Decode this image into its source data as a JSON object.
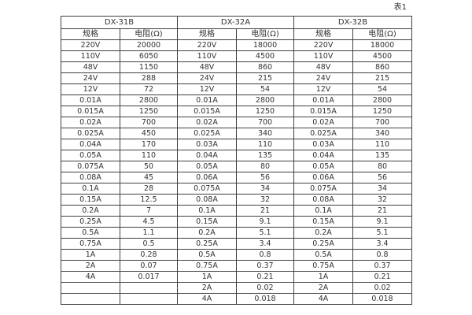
{
  "page": {
    "caption": "表1"
  },
  "colors": {
    "border": "#404040",
    "text": "#333333",
    "background": "#ffffff"
  },
  "table": {
    "groups": [
      {
        "name": "DX-31B",
        "col_headers": [
          "规格",
          "电阻(Ω)"
        ],
        "rows": [
          [
            "220V",
            "20000"
          ],
          [
            "110V",
            "6050"
          ],
          [
            "48V",
            "1150"
          ],
          [
            "24V",
            "288"
          ],
          [
            "12V",
            "72"
          ],
          [
            "0.01A",
            "2800"
          ],
          [
            "0.015A",
            "1250"
          ],
          [
            "0.02A",
            "700"
          ],
          [
            "0.025A",
            "450"
          ],
          [
            "0.04A",
            "170"
          ],
          [
            "0.05A",
            "110"
          ],
          [
            "0.075A",
            "50"
          ],
          [
            "0.08A",
            "45"
          ],
          [
            "0.1A",
            "28"
          ],
          [
            "0.15A",
            "12.5"
          ],
          [
            "0.2A",
            "7"
          ],
          [
            "0.25A",
            "4.5"
          ],
          [
            "0.5A",
            "1.1"
          ],
          [
            "0.75A",
            "0.5"
          ],
          [
            "1A",
            "0.28"
          ],
          [
            "2A",
            "0.07"
          ],
          [
            "4A",
            "0.017"
          ],
          [
            "",
            ""
          ],
          [
            "",
            ""
          ]
        ]
      },
      {
        "name": "DX-32A",
        "col_headers": [
          "规格",
          "电阻(Ω)"
        ],
        "rows": [
          [
            "220V",
            "18000"
          ],
          [
            "110V",
            "4500"
          ],
          [
            "48V",
            "860"
          ],
          [
            "24V",
            "215"
          ],
          [
            "12V",
            "54"
          ],
          [
            "0.01A",
            "2800"
          ],
          [
            "0.015A",
            "1250"
          ],
          [
            "0.02A",
            "700"
          ],
          [
            "0.025A",
            "340"
          ],
          [
            "0.03A",
            "110"
          ],
          [
            "0.04A",
            "135"
          ],
          [
            "0.05A",
            "80"
          ],
          [
            "0.06A",
            "56"
          ],
          [
            "0.075A",
            "34"
          ],
          [
            "0.08A",
            "32"
          ],
          [
            "0.1A",
            "21"
          ],
          [
            "0.15A",
            "9.1"
          ],
          [
            "0.2A",
            "5.1"
          ],
          [
            "0.25A",
            "3.4"
          ],
          [
            "0.5A",
            "0.8"
          ],
          [
            "0.75A",
            "0.37"
          ],
          [
            "1A",
            "0.21"
          ],
          [
            "2A",
            "0.02"
          ],
          [
            "4A",
            "0.018"
          ]
        ]
      },
      {
        "name": "DX-32B",
        "col_headers": [
          "规格",
          "电阻(Ω)"
        ],
        "rows": [
          [
            "220V",
            "18000"
          ],
          [
            "110V",
            "4500"
          ],
          [
            "48V",
            "860"
          ],
          [
            "24V",
            "215"
          ],
          [
            "12V",
            "54"
          ],
          [
            "0.01A",
            "2800"
          ],
          [
            "0.015A",
            "1250"
          ],
          [
            "0.02A",
            "700"
          ],
          [
            "0.025A",
            "340"
          ],
          [
            "0.03A",
            "110"
          ],
          [
            "0.04A",
            "135"
          ],
          [
            "0.05A",
            "80"
          ],
          [
            "0.06A",
            "56"
          ],
          [
            "0.075A",
            "34"
          ],
          [
            "0.08A",
            "32"
          ],
          [
            "0.1A",
            "21"
          ],
          [
            "0.15A",
            "9.1"
          ],
          [
            "0.2A",
            "5.1"
          ],
          [
            "0.25A",
            "3.4"
          ],
          [
            "0.5A",
            "0.8"
          ],
          [
            "0.75A",
            "0.37"
          ],
          [
            "1A",
            "0.21"
          ],
          [
            "2A",
            "0.02"
          ],
          [
            "4A",
            "0.018"
          ]
        ]
      }
    ]
  }
}
